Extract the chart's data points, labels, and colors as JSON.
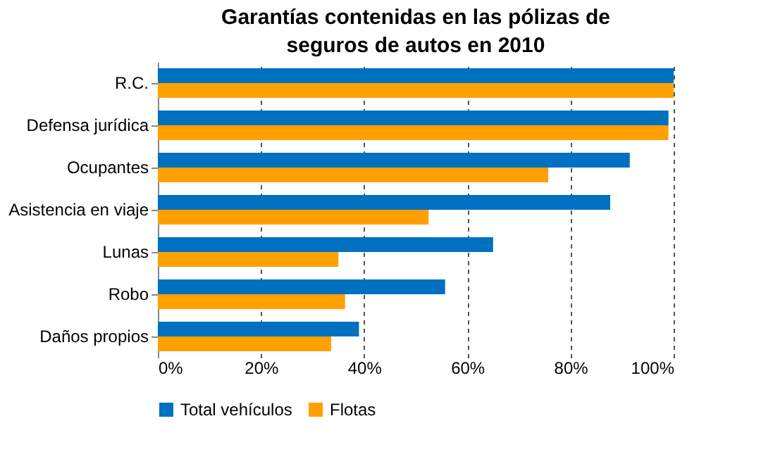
{
  "chart_data": {
    "type": "bar",
    "orientation": "horizontal",
    "title": "Garantías contenidas en las pólizas de seguros de autos en 2010",
    "categories": [
      "R.C.",
      "Defensa jurídica",
      "Ocupantes",
      "Asistencia en viaje",
      "Lunas",
      "Robo",
      "Daños propios"
    ],
    "series": [
      {
        "name": "Total vehículos",
        "color": "#0070c0",
        "values": [
          100,
          99,
          91.5,
          87.7,
          65,
          55.7,
          39
        ]
      },
      {
        "name": "Flotas",
        "color": "#ffa000",
        "values": [
          100,
          99,
          75.7,
          52.5,
          35,
          36.3,
          33.6
        ]
      }
    ],
    "xlim": [
      0,
      100
    ],
    "xticks": [
      {
        "value": 0,
        "label": "0%"
      },
      {
        "value": 20,
        "label": "20%"
      },
      {
        "value": 40,
        "label": "40%"
      },
      {
        "value": 60,
        "label": "60%"
      },
      {
        "value": 80,
        "label": "80%"
      },
      {
        "value": 100,
        "label": "100%"
      }
    ],
    "grid": "x",
    "legend": "bottom"
  }
}
